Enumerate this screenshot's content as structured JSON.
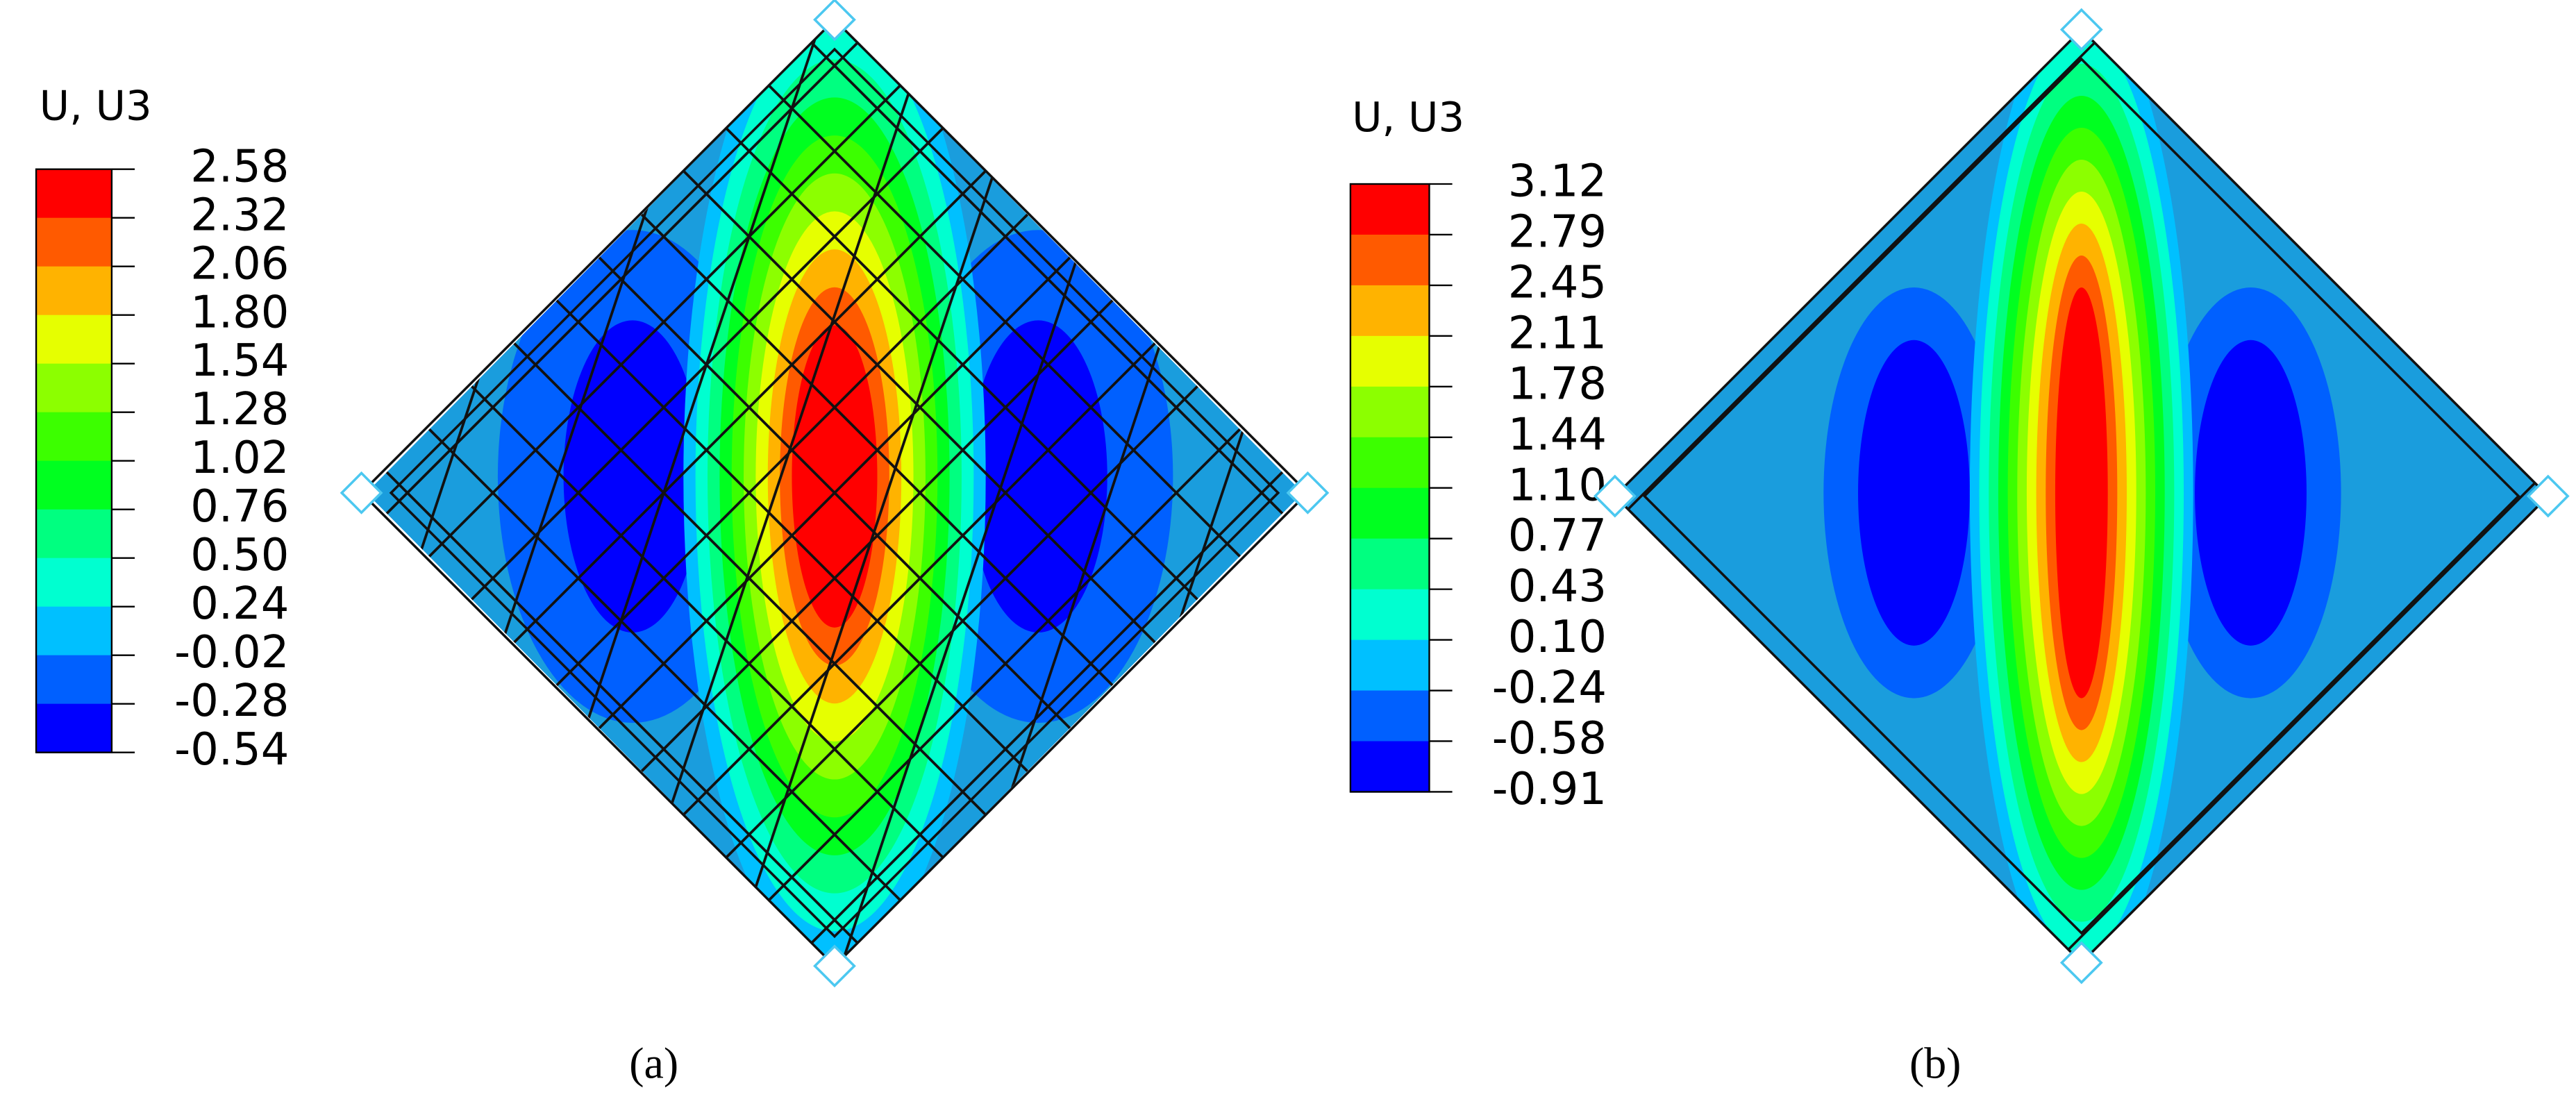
{
  "panels": [
    {
      "legend_title": "U, U3",
      "legend_labels": [
        "2.58",
        "2.32",
        "2.06",
        "1.80",
        "1.54",
        "1.28",
        "1.02",
        "0.76",
        "0.50",
        "0.24",
        "-0.02",
        "-0.28",
        "-0.54"
      ],
      "caption": "(a)"
    },
    {
      "legend_title": "U, U3",
      "legend_labels": [
        "3.12",
        "2.79",
        "2.45",
        "2.11",
        "1.78",
        "1.44",
        "1.10",
        "0.77",
        "0.43",
        "0.10",
        "-0.24",
        "-0.58",
        "-0.91"
      ],
      "caption": "(b)"
    }
  ]
}
